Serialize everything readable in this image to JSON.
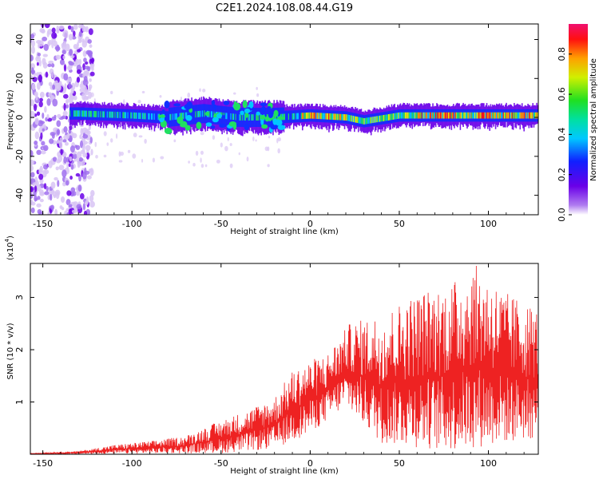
{
  "title": "C2E1.2024.108.08.44.G19",
  "chart_data": [
    {
      "type": "heatmap",
      "xlabel": "Height of straight line (km)",
      "ylabel": "Frequency (Hz)",
      "xlim": [
        -157,
        128
      ],
      "ylim": [
        -50,
        48
      ],
      "xticks": [
        "-150",
        "-100",
        "-50",
        "0",
        "50",
        "100"
      ],
      "xtick_values": [
        -150,
        -100,
        -50,
        0,
        50,
        100
      ],
      "yticks": [
        "40",
        "20",
        "0",
        "-20",
        "-40"
      ],
      "ytick_values": [
        40,
        20,
        0,
        -20,
        -40
      ],
      "colorbar": {
        "label": "Normalized spectral amplitude",
        "range": [
          0,
          0.95
        ],
        "ticks": [
          "0.0",
          "0.2",
          "0.4",
          "0.6",
          "0.8"
        ],
        "tick_values": [
          0.0,
          0.2,
          0.4,
          0.6,
          0.8
        ],
        "colormap": "rainbow (white-violet-blue-cyan-green-yellow-orange-red-magenta)"
      },
      "description_of_pattern": "noise speckle for x < -125 km; narrow band centered near 0 Hz from about -135 to 128 km, wider (about -7 to 10 Hz) between -80 and -15 km, high amplitude (red) sections near 0 to 20 km and 60 to 128 km",
      "ridge_center_hz": [
        {
          "x": -130,
          "y": 2
        },
        {
          "x": -100,
          "y": 1
        },
        {
          "x": -80,
          "y": 0
        },
        {
          "x": -60,
          "y": 2
        },
        {
          "x": -40,
          "y": 0
        },
        {
          "x": -20,
          "y": 0
        },
        {
          "x": 0,
          "y": 1
        },
        {
          "x": 20,
          "y": 0
        },
        {
          "x": 30,
          "y": -2
        },
        {
          "x": 50,
          "y": 1
        },
        {
          "x": 80,
          "y": 1
        },
        {
          "x": 100,
          "y": 1
        },
        {
          "x": 128,
          "y": 1
        }
      ]
    },
    {
      "type": "line",
      "xlabel": "Height of straight line (km)",
      "ylabel": "SNR (10 * v/v)",
      "multiplier": "(x10",
      "multiplier_exp": "4",
      "multiplier_close": ")",
      "xlim": [
        -157,
        128
      ],
      "ylim": [
        0,
        3.65
      ],
      "xticks": [
        "-150",
        "-100",
        "-50",
        "0",
        "50",
        "100"
      ],
      "xtick_values": [
        -150,
        -100,
        -50,
        0,
        50,
        100
      ],
      "yticks": [
        "1",
        "2",
        "3"
      ],
      "ytick_values": [
        1,
        2,
        3
      ],
      "series": [
        {
          "color": "#ee2222",
          "description": "rapidly oscillating signal; upper envelope in units of 1e4",
          "envelope": [
            {
              "x": -157,
              "y": 0.02
            },
            {
              "x": -130,
              "y": 0.06
            },
            {
              "x": -110,
              "y": 0.18
            },
            {
              "x": -90,
              "y": 0.25
            },
            {
              "x": -70,
              "y": 0.35
            },
            {
              "x": -50,
              "y": 0.65
            },
            {
              "x": -35,
              "y": 0.85
            },
            {
              "x": -20,
              "y": 1.1
            },
            {
              "x": -10,
              "y": 1.6
            },
            {
              "x": 0,
              "y": 1.8
            },
            {
              "x": 10,
              "y": 1.95
            },
            {
              "x": 22,
              "y": 2.5
            },
            {
              "x": 40,
              "y": 2.7
            },
            {
              "x": 60,
              "y": 3.1
            },
            {
              "x": 80,
              "y": 3.3
            },
            {
              "x": 92,
              "y": 3.65
            },
            {
              "x": 110,
              "y": 3.1
            },
            {
              "x": 128,
              "y": 2.8
            }
          ],
          "lower_envelope": [
            {
              "x": -157,
              "y": 0.0
            },
            {
              "x": -50,
              "y": 0.02
            },
            {
              "x": -20,
              "y": 0.1
            },
            {
              "x": 0,
              "y": 0.4
            },
            {
              "x": 20,
              "y": 0.9
            },
            {
              "x": 40,
              "y": 0.2
            },
            {
              "x": 80,
              "y": 0.05
            },
            {
              "x": 128,
              "y": 0.3
            }
          ]
        }
      ]
    }
  ]
}
